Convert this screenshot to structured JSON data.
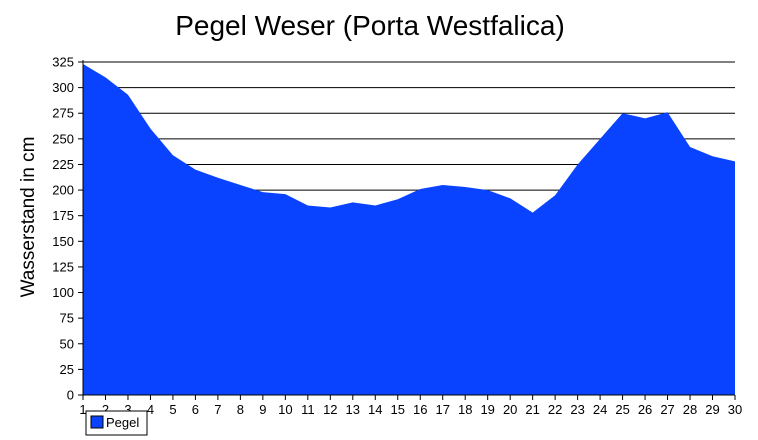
{
  "chart_data": {
    "type": "area",
    "title": "Pegel Weser (Porta Westfalica)",
    "xlabel": "",
    "ylabel": "Wasserstand in cm",
    "x": [
      1,
      2,
      3,
      4,
      5,
      6,
      7,
      8,
      9,
      10,
      11,
      12,
      13,
      14,
      15,
      16,
      17,
      18,
      19,
      20,
      21,
      22,
      23,
      24,
      25,
      26,
      27,
      28,
      29,
      30
    ],
    "series": [
      {
        "name": "Pegel",
        "color": "#0a43ff",
        "values": [
          323,
          310,
          293,
          260,
          234,
          220,
          212,
          205,
          198,
          196,
          185,
          183,
          188,
          185,
          191,
          201,
          205,
          203,
          200,
          192,
          178,
          195,
          225,
          250,
          275,
          270,
          276,
          242,
          233,
          228
        ]
      }
    ],
    "xlim": [
      1,
      30
    ],
    "ylim": [
      0,
      325
    ],
    "yticks": [
      0,
      25,
      50,
      75,
      100,
      125,
      150,
      175,
      200,
      225,
      250,
      275,
      300,
      325
    ],
    "grid": true,
    "legend": "bottom-left"
  }
}
